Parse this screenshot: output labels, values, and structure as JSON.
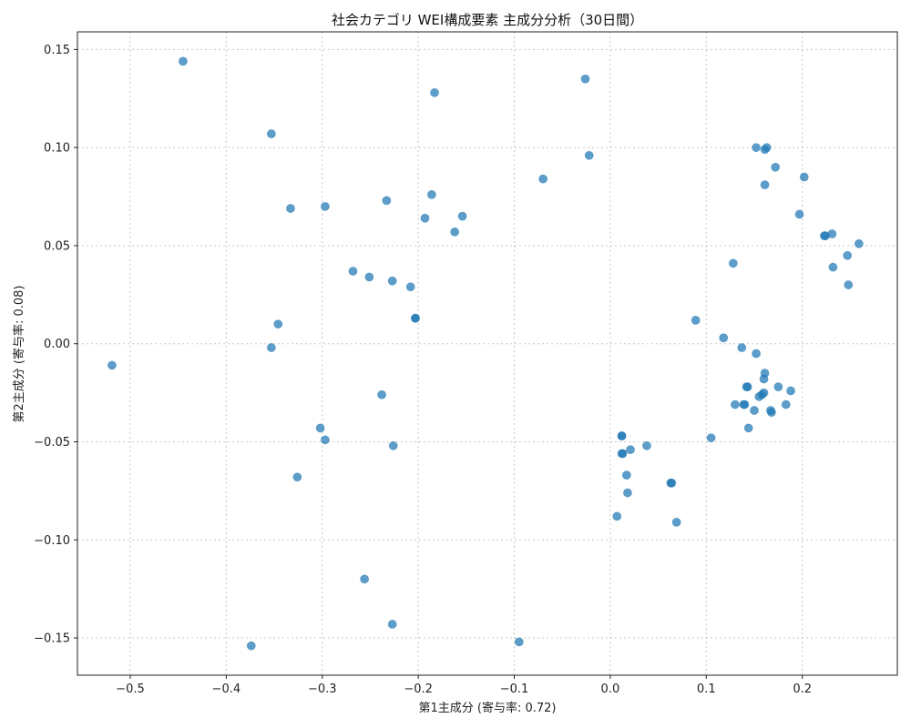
{
  "chart_data": {
    "type": "scatter",
    "title": "社会カテゴリ WEI構成要素 主成分分析（30日間）",
    "xlabel": "第1主成分 (寄与率: 0.72)",
    "ylabel": "第2主成分 (寄与率: 0.08)",
    "xlim": [
      -0.555,
      0.299
    ],
    "ylim": [
      -0.169,
      0.159
    ],
    "xticks": [
      -0.5,
      -0.4,
      -0.3,
      -0.2,
      -0.1,
      0.0,
      0.1,
      0.2
    ],
    "xtick_labels": [
      "−0.5",
      "−0.4",
      "−0.3",
      "−0.2",
      "−0.1",
      "0.0",
      "0.1",
      "0.2"
    ],
    "yticks": [
      -0.15,
      -0.1,
      -0.05,
      0.0,
      0.05,
      0.1,
      0.15
    ],
    "ytick_labels": [
      "−0.15",
      "−0.10",
      "−0.05",
      "0.00",
      "0.05",
      "0.10",
      "0.15"
    ],
    "grid": true,
    "color": "#1f77b4",
    "points": [
      [
        -0.445,
        0.144
      ],
      [
        -0.183,
        0.128
      ],
      [
        -0.026,
        0.135
      ],
      [
        -0.353,
        0.107
      ],
      [
        -0.022,
        0.096
      ],
      [
        -0.07,
        0.084
      ],
      [
        -0.186,
        0.076
      ],
      [
        -0.233,
        0.073
      ],
      [
        -0.333,
        0.069
      ],
      [
        -0.297,
        0.07
      ],
      [
        -0.193,
        0.064
      ],
      [
        -0.154,
        0.065
      ],
      [
        -0.162,
        0.057
      ],
      [
        -0.268,
        0.037
      ],
      [
        -0.251,
        0.034
      ],
      [
        -0.227,
        0.032
      ],
      [
        -0.208,
        0.029
      ],
      [
        -0.203,
        0.013
      ],
      [
        -0.203,
        0.013
      ],
      [
        -0.346,
        0.01
      ],
      [
        -0.353,
        -0.002
      ],
      [
        -0.519,
        -0.011
      ],
      [
        -0.238,
        -0.026
      ],
      [
        -0.302,
        -0.043
      ],
      [
        -0.297,
        -0.049
      ],
      [
        -0.226,
        -0.052
      ],
      [
        -0.326,
        -0.068
      ],
      [
        -0.256,
        -0.12
      ],
      [
        -0.227,
        -0.143
      ],
      [
        -0.374,
        -0.154
      ],
      [
        -0.095,
        -0.152
      ],
      [
        0.007,
        -0.088
      ],
      [
        0.018,
        -0.076
      ],
      [
        0.017,
        -0.067
      ],
      [
        0.012,
        -0.047
      ],
      [
        0.012,
        -0.047
      ],
      [
        0.012,
        -0.056
      ],
      [
        0.013,
        -0.056
      ],
      [
        0.021,
        -0.054
      ],
      [
        0.038,
        -0.052
      ],
      [
        0.063,
        -0.071
      ],
      [
        0.064,
        -0.071
      ],
      [
        0.069,
        -0.091
      ],
      [
        0.105,
        -0.048
      ],
      [
        0.089,
        0.012
      ],
      [
        0.118,
        0.003
      ],
      [
        0.128,
        0.041
      ],
      [
        0.13,
        -0.031
      ],
      [
        0.137,
        -0.002
      ],
      [
        0.139,
        -0.031
      ],
      [
        0.14,
        -0.031
      ],
      [
        0.142,
        -0.022
      ],
      [
        0.143,
        -0.022
      ],
      [
        0.144,
        -0.043
      ],
      [
        0.15,
        -0.034
      ],
      [
        0.152,
        -0.005
      ],
      [
        0.155,
        -0.027
      ],
      [
        0.158,
        -0.026
      ],
      [
        0.16,
        -0.025
      ],
      [
        0.16,
        -0.018
      ],
      [
        0.161,
        -0.015
      ],
      [
        0.167,
        -0.034
      ],
      [
        0.168,
        -0.035
      ],
      [
        0.175,
        -0.022
      ],
      [
        0.183,
        -0.031
      ],
      [
        0.188,
        -0.024
      ],
      [
        0.152,
        0.1
      ],
      [
        0.161,
        0.099
      ],
      [
        0.163,
        0.1
      ],
      [
        0.172,
        0.09
      ],
      [
        0.161,
        0.081
      ],
      [
        0.202,
        0.085
      ],
      [
        0.197,
        0.066
      ],
      [
        0.223,
        0.055
      ],
      [
        0.224,
        0.055
      ],
      [
        0.231,
        0.056
      ],
      [
        0.232,
        0.039
      ],
      [
        0.247,
        0.045
      ],
      [
        0.248,
        0.03
      ],
      [
        0.259,
        0.051
      ]
    ]
  }
}
